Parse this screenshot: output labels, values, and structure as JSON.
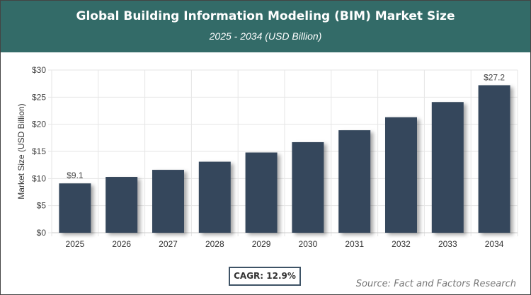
{
  "header": {
    "title": "Global Building Information Modeling (BIM) Market Size",
    "subtitle": "2025 - 2034 (USD Billion)"
  },
  "chart_data": {
    "type": "bar",
    "categories": [
      "2025",
      "2026",
      "2027",
      "2028",
      "2029",
      "2030",
      "2031",
      "2032",
      "2033",
      "2034"
    ],
    "values": [
      9.1,
      10.3,
      11.6,
      13.1,
      14.8,
      16.7,
      18.9,
      21.3,
      24.1,
      27.2
    ],
    "data_labels": {
      "0": "$9.1",
      "9": "$27.2"
    },
    "ylabel": "Market Size (USD Billion)",
    "ylim": [
      0,
      30
    ],
    "yticks": [
      0,
      5,
      10,
      15,
      20,
      25,
      30
    ],
    "ytick_labels": [
      "$0",
      "$5",
      "$10",
      "$15",
      "$20",
      "$25",
      "$30"
    ],
    "grid": true,
    "bar_color": "#36475c"
  },
  "footer": {
    "cagr": "CAGR: 12.9%",
    "source": "Source: Fact and Factors Research"
  }
}
